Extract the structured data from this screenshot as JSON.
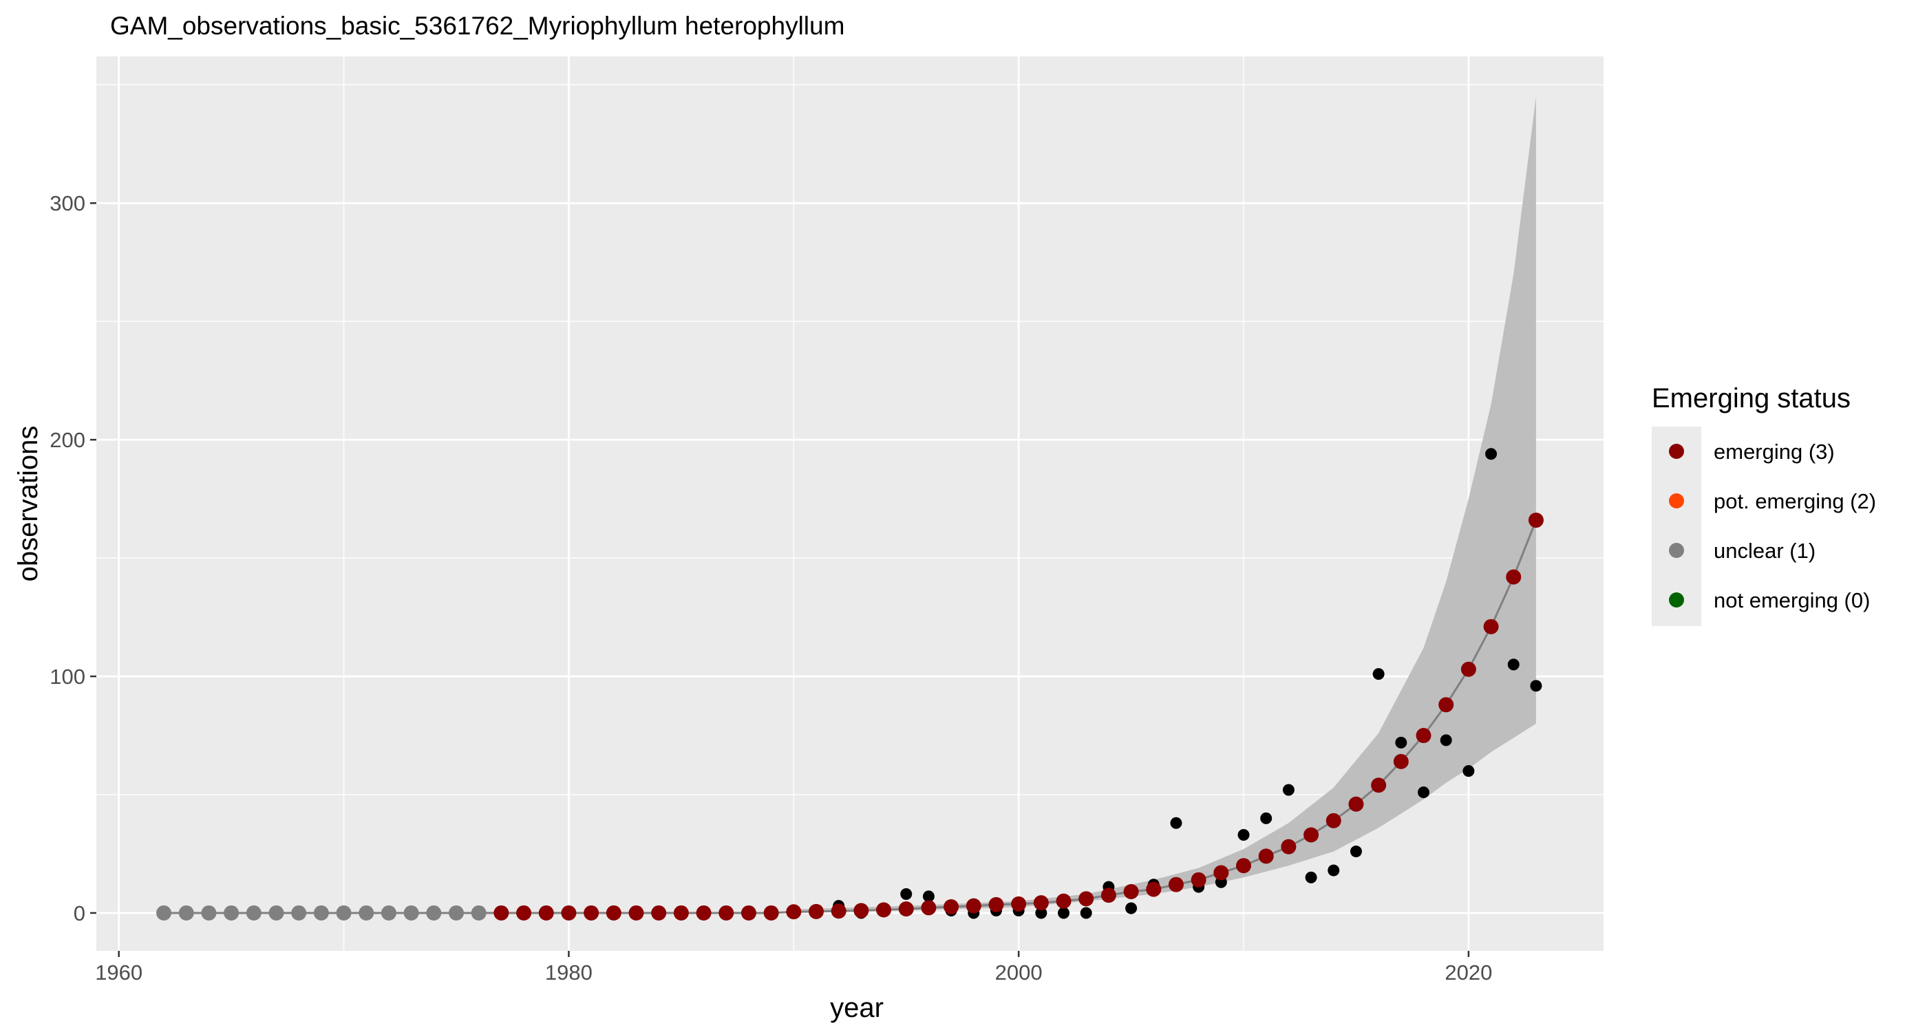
{
  "chart_data": {
    "type": "scatter",
    "title": "GAM_observations_basic_5361762_Myriophyllum heterophyllum",
    "xlabel": "year",
    "ylabel": "observations",
    "xlim": [
      1959,
      2026
    ],
    "ylim": [
      -16,
      362
    ],
    "x_ticks": [
      1960,
      1980,
      2000,
      2020
    ],
    "y_ticks": [
      0,
      100,
      200,
      300
    ],
    "grid": true,
    "legend": {
      "title": "Emerging status",
      "position": "right",
      "entries": [
        {
          "label": "emerging (3)",
          "color": "#8b0000"
        },
        {
          "label": "pot. emerging (2)",
          "color": "#ff4500"
        },
        {
          "label": "unclear (1)",
          "color": "#808080"
        },
        {
          "label": "not emerging (0)",
          "color": "#006400"
        }
      ]
    },
    "colors": {
      "panel": "#ebebeb",
      "grid": "#ffffff",
      "ribbon": "#bebebe",
      "fit_line": "#808080",
      "observed": "#000000"
    },
    "observed": {
      "x": [
        1962,
        1963,
        1964,
        1965,
        1966,
        1967,
        1968,
        1969,
        1970,
        1971,
        1972,
        1973,
        1974,
        1975,
        1976,
        1977,
        1978,
        1979,
        1980,
        1981,
        1982,
        1983,
        1984,
        1985,
        1986,
        1987,
        1988,
        1989,
        1990,
        1991,
        1992,
        1993,
        1994,
        1995,
        1996,
        1997,
        1998,
        1999,
        2000,
        2001,
        2002,
        2003,
        2004,
        2005,
        2006,
        2007,
        2008,
        2009,
        2010,
        2011,
        2012,
        2013,
        2014,
        2015,
        2016,
        2017,
        2018,
        2019,
        2020,
        2021,
        2022,
        2023
      ],
      "y": [
        0,
        0,
        0,
        0,
        0,
        0,
        0,
        0,
        0,
        0,
        0,
        0,
        0,
        0,
        0,
        0,
        0,
        0,
        0,
        0,
        0,
        0,
        0,
        0,
        0,
        0,
        0,
        0,
        0,
        0,
        3,
        0,
        1,
        8,
        7,
        1,
        0,
        1,
        1,
        0,
        0,
        0,
        11,
        2,
        12,
        38,
        11,
        13,
        33,
        40,
        52,
        15,
        18,
        26,
        101,
        72,
        51,
        73,
        60,
        194,
        105,
        96
      ]
    },
    "fitted": {
      "x": [
        1962,
        1963,
        1964,
        1965,
        1966,
        1967,
        1968,
        1969,
        1970,
        1971,
        1972,
        1973,
        1974,
        1975,
        1976,
        1977,
        1978,
        1979,
        1980,
        1981,
        1982,
        1983,
        1984,
        1985,
        1986,
        1987,
        1988,
        1989,
        1990,
        1991,
        1992,
        1993,
        1994,
        1995,
        1996,
        1997,
        1998,
        1999,
        2000,
        2001,
        2002,
        2003,
        2004,
        2005,
        2006,
        2007,
        2008,
        2009,
        2010,
        2011,
        2012,
        2013,
        2014,
        2015,
        2016,
        2017,
        2018,
        2019,
        2020,
        2021,
        2022,
        2023
      ],
      "y": [
        0,
        0,
        0,
        0,
        0,
        0,
        0,
        0,
        0,
        0,
        0,
        0,
        0,
        0,
        0,
        0,
        0,
        0,
        0,
        0,
        0,
        0,
        0,
        0,
        0,
        0,
        0,
        0,
        0.5,
        0.6,
        0.8,
        1,
        1.3,
        1.7,
        2.2,
        2.6,
        3,
        3.5,
        3.8,
        4.3,
        5,
        6,
        7.5,
        9,
        10,
        12,
        14,
        17,
        20,
        24,
        28,
        33,
        39,
        46,
        54,
        64,
        75,
        88,
        103,
        121,
        142,
        166
      ],
      "status": [
        1,
        1,
        1,
        1,
        1,
        1,
        1,
        1,
        1,
        1,
        1,
        1,
        1,
        1,
        1,
        3,
        3,
        3,
        3,
        3,
        3,
        3,
        3,
        3,
        3,
        3,
        3,
        3,
        3,
        3,
        3,
        3,
        3,
        3,
        3,
        3,
        3,
        3,
        3,
        3,
        3,
        3,
        3,
        3,
        3,
        3,
        3,
        3,
        3,
        3,
        3,
        3,
        3,
        3,
        3,
        3,
        3,
        3,
        3,
        3,
        3,
        3
      ],
      "ci_x": [
        1990,
        1995,
        2000,
        2003,
        2006,
        2008,
        2010,
        2012,
        2014,
        2016,
        2018,
        2019,
        2020,
        2021,
        2022,
        2023
      ],
      "ci_lower": [
        0,
        1,
        2.5,
        5,
        8,
        11,
        15,
        20,
        26,
        36,
        48,
        55,
        61,
        68,
        74,
        80
      ],
      "ci_upper": [
        1.5,
        3,
        5,
        8,
        14,
        19,
        27,
        38,
        53,
        76,
        112,
        140,
        175,
        215,
        270,
        345
      ]
    }
  }
}
